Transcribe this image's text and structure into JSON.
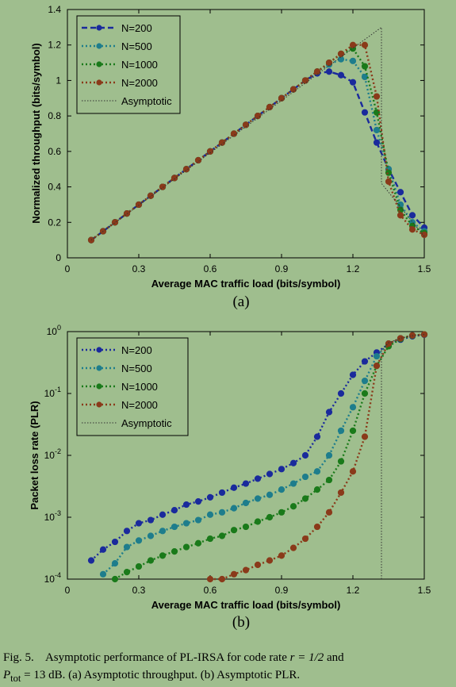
{
  "chart_data": [
    {
      "type": "line",
      "panel_label": "(a)",
      "xlabel": "Average MAC traffic load (bits/symbol)",
      "ylabel": "Normalized throughput (bits/symbol)",
      "xlim": [
        0,
        1.5
      ],
      "ylim": [
        0,
        1.4
      ],
      "xticks": [
        0,
        0.3,
        0.6,
        0.9,
        1.2,
        1.5
      ],
      "xtick_labels": [
        "0",
        "0.3",
        "0.6",
        "0.9",
        "1.2",
        "1.5"
      ],
      "yticks": [
        0,
        0.2,
        0.4,
        0.6,
        0.8,
        1.0,
        1.2,
        1.4
      ],
      "ytick_labels": [
        "0",
        "0.2",
        "0.4",
        "0.6",
        "0.8",
        "1",
        "1.2",
        "1.4"
      ],
      "yscale": "linear",
      "legend_position": "top-left",
      "series": [
        {
          "name": "N=200",
          "color": "#1a2a9c",
          "style": "dashed",
          "marker": "circle",
          "x": [
            0.1,
            0.15,
            0.2,
            0.25,
            0.3,
            0.35,
            0.4,
            0.45,
            0.5,
            0.55,
            0.6,
            0.65,
            0.7,
            0.75,
            0.8,
            0.85,
            0.9,
            0.95,
            1.0,
            1.05,
            1.1,
            1.15,
            1.2,
            1.25,
            1.3,
            1.35,
            1.4,
            1.45,
            1.5
          ],
          "y": [
            0.1,
            0.15,
            0.2,
            0.25,
            0.3,
            0.35,
            0.4,
            0.45,
            0.5,
            0.55,
            0.6,
            0.65,
            0.7,
            0.75,
            0.8,
            0.85,
            0.9,
            0.95,
            1.0,
            1.04,
            1.05,
            1.03,
            0.99,
            0.82,
            0.65,
            0.5,
            0.37,
            0.24,
            0.17
          ]
        },
        {
          "name": "N=500",
          "color": "#1e7d8c",
          "style": "dotted",
          "marker": "circle",
          "x": [
            0.1,
            0.15,
            0.2,
            0.25,
            0.3,
            0.35,
            0.4,
            0.45,
            0.5,
            0.55,
            0.6,
            0.65,
            0.7,
            0.75,
            0.8,
            0.85,
            0.9,
            0.95,
            1.0,
            1.05,
            1.1,
            1.15,
            1.2,
            1.25,
            1.3,
            1.35,
            1.4,
            1.45,
            1.5
          ],
          "y": [
            0.1,
            0.15,
            0.2,
            0.25,
            0.3,
            0.35,
            0.4,
            0.45,
            0.5,
            0.55,
            0.6,
            0.65,
            0.7,
            0.75,
            0.8,
            0.85,
            0.9,
            0.95,
            1.0,
            1.05,
            1.09,
            1.12,
            1.11,
            1.02,
            0.72,
            0.5,
            0.3,
            0.2,
            0.15
          ]
        },
        {
          "name": "N=1000",
          "color": "#1a7a1a",
          "style": "dotted",
          "marker": "circle",
          "x": [
            0.1,
            0.15,
            0.2,
            0.25,
            0.3,
            0.35,
            0.4,
            0.45,
            0.5,
            0.55,
            0.6,
            0.65,
            0.7,
            0.75,
            0.8,
            0.85,
            0.9,
            0.95,
            1.0,
            1.05,
            1.1,
            1.15,
            1.2,
            1.25,
            1.3,
            1.35,
            1.4,
            1.45,
            1.5
          ],
          "y": [
            0.1,
            0.15,
            0.2,
            0.25,
            0.3,
            0.35,
            0.4,
            0.45,
            0.5,
            0.55,
            0.6,
            0.65,
            0.7,
            0.75,
            0.8,
            0.85,
            0.9,
            0.95,
            1.0,
            1.05,
            1.1,
            1.15,
            1.18,
            1.08,
            0.82,
            0.48,
            0.27,
            0.18,
            0.14
          ]
        },
        {
          "name": "N=2000",
          "color": "#8a3a1a",
          "style": "dotted",
          "marker": "circle",
          "x": [
            0.1,
            0.15,
            0.2,
            0.25,
            0.3,
            0.35,
            0.4,
            0.45,
            0.5,
            0.55,
            0.6,
            0.65,
            0.7,
            0.75,
            0.8,
            0.85,
            0.9,
            0.95,
            1.0,
            1.05,
            1.1,
            1.15,
            1.2,
            1.25,
            1.3,
            1.35,
            1.4,
            1.45,
            1.5
          ],
          "y": [
            0.1,
            0.15,
            0.2,
            0.25,
            0.3,
            0.35,
            0.4,
            0.45,
            0.5,
            0.55,
            0.6,
            0.65,
            0.7,
            0.75,
            0.8,
            0.85,
            0.9,
            0.95,
            1.0,
            1.05,
            1.1,
            1.15,
            1.2,
            1.2,
            0.91,
            0.43,
            0.24,
            0.16,
            0.13
          ]
        },
        {
          "name": "Asymptotic",
          "color": "#333333",
          "style": "dotted-thin",
          "marker": "none",
          "x": [
            0.1,
            1.32,
            1.32,
            1.5
          ],
          "y": [
            0.1,
            1.3,
            0.42,
            0.12
          ]
        }
      ]
    },
    {
      "type": "line",
      "panel_label": "(b)",
      "xlabel": "Average MAC traffic load (bits/symbol)",
      "ylabel": "Packet loss rate (PLR)",
      "xlim": [
        0,
        1.5
      ],
      "ylim": [
        0.0001,
        1
      ],
      "xticks": [
        0,
        0.3,
        0.6,
        0.9,
        1.2,
        1.5
      ],
      "xtick_labels": [
        "0",
        "0.3",
        "0.6",
        "0.9",
        "1.2",
        "1.5"
      ],
      "yticks": [
        0.0001,
        0.001,
        0.01,
        0.1,
        1
      ],
      "ytick_bases": [
        "10",
        "10",
        "10",
        "10",
        "10"
      ],
      "ytick_exponents": [
        "-4",
        "-3",
        "-2",
        "-1",
        "0"
      ],
      "yscale": "log",
      "legend_position": "top-left",
      "series": [
        {
          "name": "N=200",
          "color": "#1a2a9c",
          "style": "dotted",
          "marker": "circle",
          "x": [
            0.1,
            0.15,
            0.2,
            0.25,
            0.3,
            0.35,
            0.4,
            0.45,
            0.5,
            0.55,
            0.6,
            0.65,
            0.7,
            0.75,
            0.8,
            0.85,
            0.9,
            0.95,
            1.0,
            1.05,
            1.1,
            1.15,
            1.2,
            1.25,
            1.3,
            1.35,
            1.4,
            1.45,
            1.5
          ],
          "y": [
            0.0002,
            0.0003,
            0.0004,
            0.0006,
            0.0008,
            0.0009,
            0.0011,
            0.0013,
            0.0016,
            0.0018,
            0.0021,
            0.0025,
            0.003,
            0.0035,
            0.0042,
            0.005,
            0.006,
            0.0075,
            0.01,
            0.02,
            0.05,
            0.1,
            0.2,
            0.33,
            0.46,
            0.63,
            0.74,
            0.84,
            0.89
          ]
        },
        {
          "name": "N=500",
          "color": "#1e7d8c",
          "style": "dotted",
          "marker": "circle",
          "x": [
            0.15,
            0.2,
            0.25,
            0.3,
            0.35,
            0.4,
            0.45,
            0.5,
            0.55,
            0.6,
            0.65,
            0.7,
            0.75,
            0.8,
            0.85,
            0.9,
            0.95,
            1.0,
            1.05,
            1.1,
            1.15,
            1.2,
            1.25,
            1.3,
            1.35,
            1.4,
            1.45,
            1.5
          ],
          "y": [
            0.00012,
            0.00018,
            0.00033,
            0.00042,
            0.0005,
            0.0006,
            0.0007,
            0.0008,
            0.0009,
            0.0011,
            0.0012,
            0.0014,
            0.0017,
            0.002,
            0.0023,
            0.0028,
            0.0035,
            0.0045,
            0.0055,
            0.01,
            0.025,
            0.06,
            0.16,
            0.4,
            0.64,
            0.78,
            0.87,
            0.9
          ]
        },
        {
          "name": "N=1000",
          "color": "#1a7a1a",
          "style": "dotted",
          "marker": "circle",
          "x": [
            0.2,
            0.25,
            0.3,
            0.35,
            0.4,
            0.45,
            0.5,
            0.55,
            0.6,
            0.65,
            0.7,
            0.75,
            0.8,
            0.85,
            0.9,
            0.95,
            1.0,
            1.05,
            1.1,
            1.15,
            1.2,
            1.25,
            1.3,
            1.35,
            1.4,
            1.45,
            1.5
          ],
          "y": [
            0.0001,
            0.00013,
            0.00016,
            0.0002,
            0.00024,
            0.00028,
            0.00033,
            0.00038,
            0.00045,
            0.0005,
            0.00062,
            0.0007,
            0.00085,
            0.001,
            0.0012,
            0.0015,
            0.002,
            0.0028,
            0.004,
            0.008,
            0.025,
            0.1,
            0.28,
            0.58,
            0.76,
            0.86,
            0.9
          ]
        },
        {
          "name": "N=2000",
          "color": "#8a3a1a",
          "style": "dotted",
          "marker": "circle",
          "x": [
            0.6,
            0.65,
            0.7,
            0.75,
            0.8,
            0.85,
            0.9,
            0.95,
            1.0,
            1.05,
            1.1,
            1.15,
            1.2,
            1.25,
            1.3,
            1.35,
            1.4,
            1.45,
            1.5
          ],
          "y": [
            0.0001,
            0.0001,
            0.00012,
            0.00014,
            0.00017,
            0.0002,
            0.00024,
            0.00032,
            0.00045,
            0.0007,
            0.0012,
            0.0025,
            0.0055,
            0.02,
            0.28,
            0.64,
            0.78,
            0.87,
            0.9
          ]
        },
        {
          "name": "Asymptotic",
          "color": "#333333",
          "style": "dotted-thin",
          "marker": "none",
          "x": [
            1.32,
            1.32,
            1.35,
            1.4,
            1.45,
            1.5
          ],
          "y": [
            0.0001,
            0.5,
            0.66,
            0.78,
            0.86,
            0.9
          ]
        }
      ]
    }
  ],
  "caption": {
    "fig_label": "Fig. 5.",
    "text_before_math": "Asymptotic performance of PL-IRSA for code rate ",
    "math_r": "r = 1/2",
    "text_and": " and",
    "math_p": "P",
    "math_p_sub": "tot",
    "text_rest": " = 13 dB. (a) Asymptotic throughput. (b) Asymptotic PLR."
  }
}
